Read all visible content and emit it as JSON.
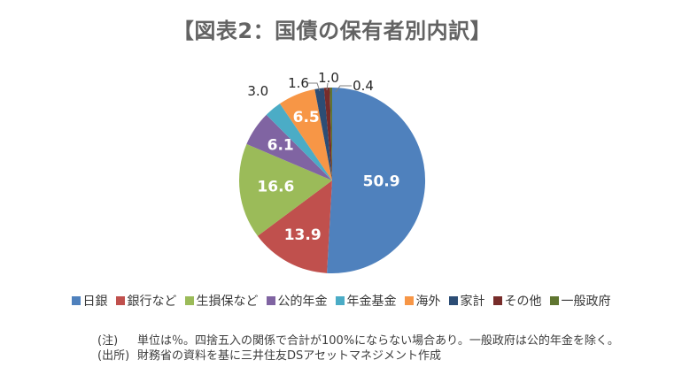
{
  "title": "【図表2：国債の保有者別内訳】",
  "chart_data": {
    "type": "pie",
    "title": "【図表2：国債の保有者別内訳】",
    "unit": "%",
    "categories": [
      "日銀",
      "銀行など",
      "生損保など",
      "公的年金",
      "年金基金",
      "海外",
      "家計",
      "その他",
      "一般政府"
    ],
    "values": [
      50.9,
      13.9,
      16.6,
      6.1,
      3.0,
      6.5,
      1.6,
      1.0,
      0.4
    ],
    "colors": [
      "#4F81BD",
      "#C0504D",
      "#9BBB59",
      "#8064A2",
      "#4BACC6",
      "#F79646",
      "#2C4D75",
      "#772C2A",
      "#5F7530"
    ],
    "start_angle_deg": 0,
    "direction": "clockwise",
    "legend_position": "bottom",
    "label_style": {
      "inside_color": "#FFFFFF",
      "outside_color": "#262626"
    },
    "label_placement": [
      "inside",
      "inside",
      "inside",
      "inside",
      "outside",
      "inside",
      "leader",
      "leader",
      "leader"
    ],
    "label_radial_fraction": [
      0.53,
      0.67,
      0.61,
      0.67,
      1.25,
      0.73,
      null,
      null,
      null
    ]
  },
  "notes": [
    {
      "prefix": "(注)",
      "text": "単位は％。四捨五入の関係で合計が100%にならない場合あり。一般政府は公的年金を除く。"
    },
    {
      "prefix": "(出所)",
      "text": "財務省の資料を基に三井住友DSアセットマネジメント作成"
    }
  ],
  "ui_colors": {
    "background": "#FFFFFF",
    "title_text": "#636363",
    "legend_text": "#383838",
    "note_text": "#3D3D3D",
    "leader_line": "#7F7F7F"
  }
}
